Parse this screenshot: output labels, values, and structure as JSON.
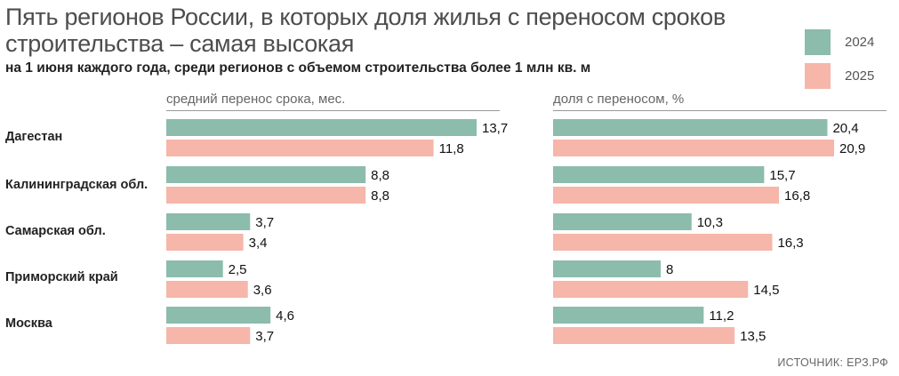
{
  "title": "Пять регионов России, в которых доля жилья с переносом сроков строительства – самая высокая",
  "subtitle": "на 1 июня каждого года, среди регионов с объемом строительства более 1 млн кв. м",
  "source": "ИСТОЧНИК: ЕРЗ.РФ",
  "colors": {
    "2024": "#8cbcac",
    "2025": "#f6b6a9"
  },
  "chart_data": [
    {
      "type": "bar",
      "orientation": "horizontal",
      "title": "средний перенос срока, мес.",
      "categories": [
        "Дагестан",
        "Калининградская обл.",
        "Самарская обл.",
        "Приморский край",
        "Москва"
      ],
      "series": [
        {
          "name": "2024",
          "values": [
            13.7,
            8.8,
            3.7,
            2.5,
            4.6
          ],
          "labels": [
            "13,7",
            "8,8",
            "3,7",
            "2,5",
            "4,6"
          ]
        },
        {
          "name": "2025",
          "values": [
            11.8,
            8.8,
            3.4,
            3.6,
            3.7
          ],
          "labels": [
            "11,8",
            "8,8",
            "3,4",
            "3,6",
            "3,7"
          ]
        }
      ],
      "xlim": [
        0,
        13.7
      ],
      "legend": "top-right",
      "grid": false
    },
    {
      "type": "bar",
      "orientation": "horizontal",
      "title": "доля с переносом, %",
      "categories": [
        "Дагестан",
        "Калининградская обл.",
        "Самарская обл.",
        "Приморский край",
        "Москва"
      ],
      "series": [
        {
          "name": "2024",
          "values": [
            20.4,
            15.7,
            10.3,
            8,
            11.2
          ],
          "labels": [
            "20,4",
            "15,7",
            "10,3",
            "8",
            "11,2"
          ]
        },
        {
          "name": "2025",
          "values": [
            20.9,
            16.8,
            16.3,
            14.5,
            13.5
          ],
          "labels": [
            "20,9",
            "16,8",
            "16,3",
            "14,5",
            "13,5"
          ]
        }
      ],
      "xlim": [
        0,
        20.9
      ],
      "legend": "top-right",
      "grid": false
    }
  ]
}
